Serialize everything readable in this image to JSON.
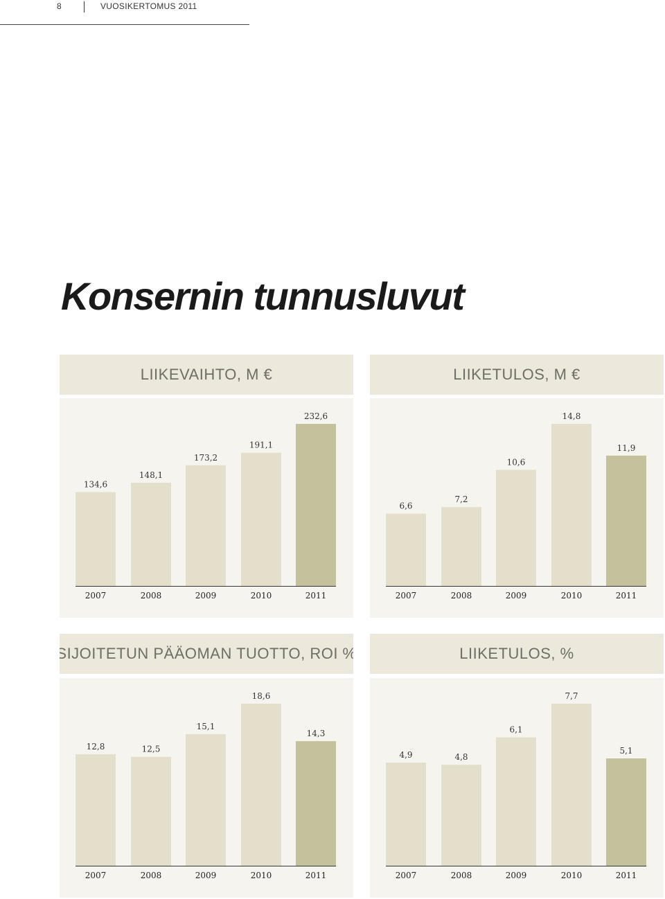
{
  "header": {
    "page_number": "8",
    "report_title": "VUOSIKERTOMUS 2011"
  },
  "main_title": "Konsernin tunnusluvut",
  "colors": {
    "bar_light": "#e3dfcb",
    "bar_highlight": "#c4c19d",
    "panel_bg": "#f6f4ee",
    "title_bg": "#ece8db"
  },
  "chart_data": [
    {
      "type": "bar",
      "title": "LIIKEVAIHTO, M €",
      "categories": [
        "2007",
        "2008",
        "2009",
        "2010",
        "2011"
      ],
      "values": [
        134.6,
        148.1,
        173.2,
        191.1,
        232.6
      ],
      "labels": [
        "134,6",
        "148,1",
        "173,2",
        "191,1",
        "232,6"
      ],
      "highlight_index": 4,
      "ylim": [
        0,
        232.6
      ]
    },
    {
      "type": "bar",
      "title": "LIIKETULOS, M €",
      "categories": [
        "2007",
        "2008",
        "2009",
        "2010",
        "2011"
      ],
      "values": [
        6.6,
        7.2,
        10.6,
        14.8,
        11.9
      ],
      "labels": [
        "6,6",
        "7,2",
        "10,6",
        "14,8",
        "11,9"
      ],
      "highlight_index": 4,
      "ylim": [
        0,
        14.8
      ]
    },
    {
      "type": "bar",
      "title": "SIJOITETUN PÄÄOMAN TUOTTO, ROI %",
      "categories": [
        "2007",
        "2008",
        "2009",
        "2010",
        "2011"
      ],
      "values": [
        12.8,
        12.5,
        15.1,
        18.6,
        14.3
      ],
      "labels": [
        "12,8",
        "12,5",
        "15,1",
        "18,6",
        "14,3"
      ],
      "highlight_index": 4,
      "ylim": [
        0,
        18.6
      ]
    },
    {
      "type": "bar",
      "title": "LIIKETULOS, %",
      "categories": [
        "2007",
        "2008",
        "2009",
        "2010",
        "2011"
      ],
      "values": [
        4.9,
        4.8,
        6.1,
        7.7,
        5.1
      ],
      "labels": [
        "4,9",
        "4,8",
        "6,1",
        "7,7",
        "5,1"
      ],
      "highlight_index": 4,
      "ylim": [
        0,
        7.7
      ]
    }
  ]
}
